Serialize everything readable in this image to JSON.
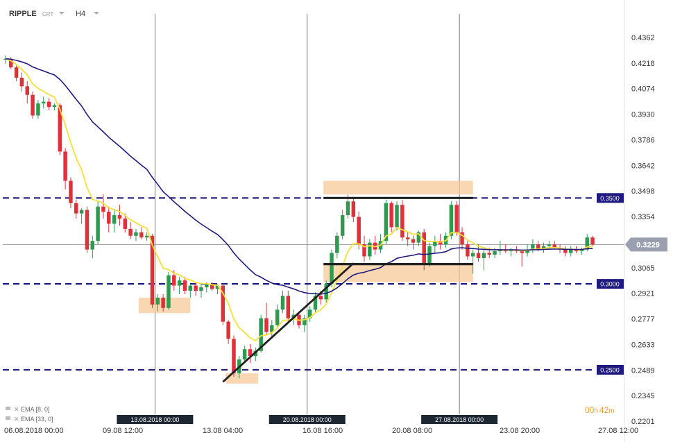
{
  "header": {
    "symbol": "RIPPLE",
    "type": "CRT",
    "timeframe": "H4"
  },
  "price_tag": "0.3229",
  "countdown": {
    "h": "00",
    "h_unit": "h",
    "m": "42",
    "m_unit": "m"
  },
  "indicators": [
    "EMA [8, 0]",
    "EMA [33, 0]"
  ],
  "colors": {
    "bull": "#2e9a4f",
    "bear": "#e0303a",
    "ema_fast": "#f5e03a",
    "ema_slow": "#1e1a80",
    "level": "#1e1a80",
    "zone": "#f8c99a",
    "trend": "#222222",
    "price_tag": "#9aa0b0"
  },
  "chart_data": {
    "type": "candlestick",
    "ylim": [
      0.2201,
      0.4434
    ],
    "yticks": [
      "0.4362",
      "0.4218",
      "0.4074",
      "0.3930",
      "0.3786",
      "0.3642",
      "0.3498",
      "0.3354",
      "0.3210",
      "0.3065",
      "0.2921",
      "0.2777",
      "0.2633",
      "0.2489",
      "0.2345",
      "0.2201"
    ],
    "xticks": [
      "06.08.2018  00:00",
      "09.08  12:00",
      "13.08  04:00",
      "16.08  16:00",
      "20.08  08:00",
      "23.08  20:00",
      "27.08  12:00"
    ],
    "vlines": [
      "13.08.2018 00:00",
      "20.08.2018 00:00",
      "27.08.2018 00:00"
    ],
    "levels": [
      {
        "value": 0.35,
        "label": "0.3500"
      },
      {
        "value": 0.3,
        "label": "0.3000"
      },
      {
        "value": 0.25,
        "label": "0.2500"
      }
    ],
    "last_price": 0.3229,
    "candles": [
      [
        0.4305,
        0.433,
        0.428,
        0.431
      ],
      [
        0.431,
        0.432,
        0.425,
        0.426
      ],
      [
        0.426,
        0.427,
        0.418,
        0.42
      ],
      [
        0.42,
        0.423,
        0.412,
        0.415
      ],
      [
        0.415,
        0.418,
        0.405,
        0.41
      ],
      [
        0.41,
        0.412,
        0.396,
        0.398
      ],
      [
        0.398,
        0.407,
        0.396,
        0.405
      ],
      [
        0.405,
        0.409,
        0.402,
        0.406
      ],
      [
        0.406,
        0.408,
        0.401,
        0.403
      ],
      [
        0.403,
        0.405,
        0.401,
        0.404
      ],
      [
        0.404,
        0.405,
        0.375,
        0.377
      ],
      [
        0.377,
        0.379,
        0.355,
        0.36
      ],
      [
        0.36,
        0.362,
        0.344,
        0.347
      ],
      [
        0.347,
        0.349,
        0.338,
        0.341
      ],
      [
        0.341,
        0.344,
        0.335,
        0.343
      ],
      [
        0.343,
        0.345,
        0.318,
        0.32
      ],
      [
        0.32,
        0.328,
        0.315,
        0.325
      ],
      [
        0.325,
        0.348,
        0.323,
        0.345
      ],
      [
        0.345,
        0.352,
        0.338,
        0.342
      ],
      [
        0.342,
        0.345,
        0.33,
        0.335
      ],
      [
        0.335,
        0.343,
        0.33,
        0.34
      ],
      [
        0.34,
        0.346,
        0.334,
        0.338
      ],
      [
        0.338,
        0.341,
        0.33,
        0.332
      ],
      [
        0.332,
        0.336,
        0.326,
        0.328
      ],
      [
        0.328,
        0.332,
        0.325,
        0.33
      ],
      [
        0.33,
        0.333,
        0.326,
        0.327
      ],
      [
        0.327,
        0.33,
        0.325,
        0.328
      ],
      [
        0.328,
        0.329,
        0.286,
        0.288
      ],
      [
        0.288,
        0.294,
        0.284,
        0.292
      ],
      [
        0.292,
        0.294,
        0.284,
        0.286
      ],
      [
        0.286,
        0.307,
        0.285,
        0.305
      ],
      [
        0.305,
        0.308,
        0.296,
        0.299
      ],
      [
        0.299,
        0.304,
        0.294,
        0.302
      ],
      [
        0.302,
        0.304,
        0.294,
        0.296
      ],
      [
        0.296,
        0.3,
        0.292,
        0.299
      ],
      [
        0.299,
        0.301,
        0.293,
        0.296
      ],
      [
        0.296,
        0.3,
        0.292,
        0.298
      ],
      [
        0.298,
        0.301,
        0.295,
        0.3
      ],
      [
        0.3,
        0.301,
        0.296,
        0.297
      ],
      [
        0.297,
        0.3,
        0.294,
        0.299
      ],
      [
        0.299,
        0.3,
        0.276,
        0.278
      ],
      [
        0.278,
        0.279,
        0.265,
        0.268
      ],
      [
        0.268,
        0.27,
        0.246,
        0.248
      ],
      [
        0.248,
        0.258,
        0.245,
        0.256
      ],
      [
        0.256,
        0.264,
        0.254,
        0.262
      ],
      [
        0.262,
        0.265,
        0.254,
        0.258
      ],
      [
        0.258,
        0.263,
        0.255,
        0.261
      ],
      [
        0.261,
        0.282,
        0.26,
        0.28
      ],
      [
        0.28,
        0.289,
        0.27,
        0.272
      ],
      [
        0.272,
        0.279,
        0.269,
        0.276
      ],
      [
        0.276,
        0.288,
        0.274,
        0.285
      ],
      [
        0.285,
        0.296,
        0.283,
        0.293
      ],
      [
        0.293,
        0.296,
        0.278,
        0.28
      ],
      [
        0.28,
        0.285,
        0.276,
        0.282
      ],
      [
        0.282,
        0.284,
        0.274,
        0.276
      ],
      [
        0.276,
        0.282,
        0.272,
        0.28
      ],
      [
        0.28,
        0.287,
        0.278,
        0.285
      ],
      [
        0.285,
        0.295,
        0.283,
        0.293
      ],
      [
        0.293,
        0.296,
        0.288,
        0.291
      ],
      [
        0.291,
        0.302,
        0.289,
        0.3
      ],
      [
        0.3,
        0.32,
        0.298,
        0.318
      ],
      [
        0.318,
        0.33,
        0.315,
        0.328
      ],
      [
        0.328,
        0.343,
        0.326,
        0.34
      ],
      [
        0.34,
        0.352,
        0.338,
        0.348
      ],
      [
        0.348,
        0.35,
        0.336,
        0.339
      ],
      [
        0.339,
        0.342,
        0.32,
        0.323
      ],
      [
        0.323,
        0.328,
        0.313,
        0.316
      ],
      [
        0.316,
        0.326,
        0.314,
        0.324
      ],
      [
        0.324,
        0.328,
        0.317,
        0.32
      ],
      [
        0.32,
        0.329,
        0.318,
        0.325
      ],
      [
        0.325,
        0.349,
        0.323,
        0.347
      ],
      [
        0.347,
        0.348,
        0.33,
        0.333
      ],
      [
        0.333,
        0.348,
        0.331,
        0.346
      ],
      [
        0.346,
        0.349,
        0.325,
        0.327
      ],
      [
        0.327,
        0.33,
        0.322,
        0.326
      ],
      [
        0.326,
        0.328,
        0.32,
        0.324
      ],
      [
        0.324,
        0.331,
        0.322,
        0.33
      ],
      [
        0.33,
        0.332,
        0.308,
        0.312
      ],
      [
        0.312,
        0.324,
        0.31,
        0.322
      ],
      [
        0.322,
        0.328,
        0.318,
        0.325
      ],
      [
        0.325,
        0.329,
        0.32,
        0.323
      ],
      [
        0.323,
        0.33,
        0.321,
        0.328
      ],
      [
        0.328,
        0.348,
        0.326,
        0.346
      ],
      [
        0.346,
        0.348,
        0.328,
        0.33
      ],
      [
        0.33,
        0.333,
        0.32,
        0.323
      ],
      [
        0.323,
        0.325,
        0.314,
        0.316
      ],
      [
        0.316,
        0.32,
        0.306,
        0.318
      ],
      [
        0.318,
        0.323,
        0.313,
        0.315
      ],
      [
        0.315,
        0.32,
        0.308,
        0.318
      ],
      [
        0.318,
        0.321,
        0.315,
        0.317
      ],
      [
        0.317,
        0.321,
        0.315,
        0.319
      ],
      [
        0.319,
        0.325,
        0.317,
        0.32
      ],
      [
        0.32,
        0.323,
        0.318,
        0.319
      ],
      [
        0.319,
        0.321,
        0.316,
        0.32
      ],
      [
        0.32,
        0.322,
        0.318,
        0.319
      ],
      [
        0.319,
        0.32,
        0.31,
        0.318
      ],
      [
        0.318,
        0.323,
        0.316,
        0.32
      ],
      [
        0.32,
        0.326,
        0.318,
        0.323
      ],
      [
        0.323,
        0.325,
        0.319,
        0.32
      ],
      [
        0.32,
        0.324,
        0.318,
        0.322
      ],
      [
        0.322,
        0.325,
        0.32,
        0.323
      ],
      [
        0.323,
        0.325,
        0.32,
        0.321
      ],
      [
        0.321,
        0.323,
        0.318,
        0.32
      ],
      [
        0.32,
        0.322,
        0.316,
        0.318
      ],
      [
        0.318,
        0.322,
        0.316,
        0.32
      ],
      [
        0.32,
        0.322,
        0.318,
        0.319
      ],
      [
        0.319,
        0.321,
        0.317,
        0.32
      ],
      [
        0.32,
        0.329,
        0.319,
        0.327
      ],
      [
        0.327,
        0.328,
        0.322,
        0.3229
      ]
    ],
    "zones": [
      {
        "i0": 24.5,
        "i1": 34.0,
        "top": 0.292,
        "bottom": 0.283
      },
      {
        "i0": 40.5,
        "i1": 46.5,
        "top": 0.248,
        "bottom": 0.242
      },
      {
        "i0": 58.5,
        "i1": 86.0,
        "top": 0.36,
        "bottom": 0.352
      },
      {
        "i0": 58.5,
        "i1": 86.0,
        "top": 0.312,
        "bottom": 0.301
      }
    ],
    "hlines": [
      {
        "i0": 58.5,
        "i1": 86.0,
        "value": 0.35
      },
      {
        "i0": 58.5,
        "i1": 86.0,
        "value": 0.3115
      }
    ],
    "trendline": {
      "i0": 40.0,
      "v0": 0.243,
      "i1": 64.0,
      "v1": 0.312
    }
  }
}
